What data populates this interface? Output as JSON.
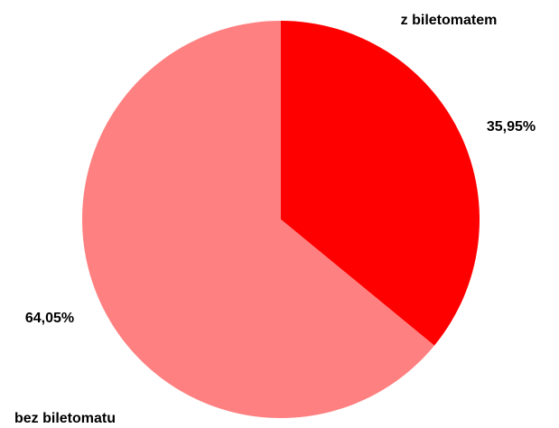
{
  "chart_data": {
    "type": "pie",
    "categories": [
      "z biletomatem",
      "bez biletomatu"
    ],
    "values": [
      35.95,
      64.05
    ],
    "value_labels": [
      "35,95%",
      "64,05%"
    ],
    "colors": [
      "#ff0000",
      "#ff8080"
    ]
  }
}
